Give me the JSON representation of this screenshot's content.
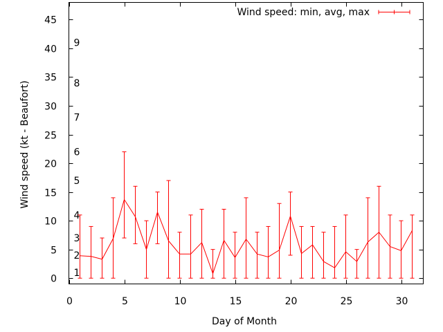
{
  "chart_data": {
    "type": "line",
    "title": "",
    "xlabel": "Day of Month",
    "ylabel": "Wind speed (kt - Beaufort)",
    "xlim": [
      0,
      32
    ],
    "ylim": [
      -1,
      48
    ],
    "x_ticks": [
      0,
      5,
      10,
      15,
      20,
      25,
      30
    ],
    "y_ticks": [
      0,
      5,
      10,
      15,
      20,
      25,
      30,
      35,
      40,
      45
    ],
    "beaufort_labels": [
      {
        "label": "1",
        "y": 1
      },
      {
        "label": "2",
        "y": 4
      },
      {
        "label": "3",
        "y": 7
      },
      {
        "label": "4",
        "y": 11
      },
      {
        "label": "5",
        "y": 17
      },
      {
        "label": "6",
        "y": 22
      },
      {
        "label": "7",
        "y": 28
      },
      {
        "label": "8",
        "y": 34
      },
      {
        "label": "9",
        "y": 41
      }
    ],
    "grid": false,
    "legend_position": "top-right",
    "series": [
      {
        "name": "Wind speed: min, avg, max",
        "color": "#ff0000",
        "x": [
          1,
          2,
          3,
          4,
          5,
          6,
          7,
          8,
          9,
          10,
          11,
          12,
          13,
          14,
          15,
          16,
          17,
          18,
          19,
          20,
          21,
          22,
          23,
          24,
          25,
          26,
          27,
          28,
          29,
          30,
          31
        ],
        "avg": [
          3.9,
          3.8,
          3.3,
          6.9,
          13.7,
          10.7,
          5,
          11.5,
          6.5,
          4.2,
          4.2,
          6.2,
          0.8,
          6.6,
          3.6,
          6.8,
          4.2,
          3.7,
          4.9,
          10.8,
          4.3,
          5.8,
          2.9,
          1.8,
          4.6,
          2.9,
          6.3,
          8,
          5.5,
          4.8,
          8.3
        ],
        "min": [
          0,
          0,
          0,
          0,
          7,
          6,
          0,
          6,
          0,
          0,
          0,
          0,
          0,
          0,
          0,
          0,
          0,
          0,
          0,
          4,
          0,
          0,
          0,
          0,
          0,
          0,
          0,
          0,
          0,
          0,
          0
        ],
        "max": [
          11,
          9,
          7,
          14,
          22,
          16,
          10,
          15,
          17,
          8,
          11,
          12,
          5,
          12,
          8,
          14,
          8,
          9,
          13,
          15,
          9,
          9,
          8,
          9,
          11,
          5,
          14,
          16,
          11,
          10,
          11
        ]
      }
    ]
  }
}
